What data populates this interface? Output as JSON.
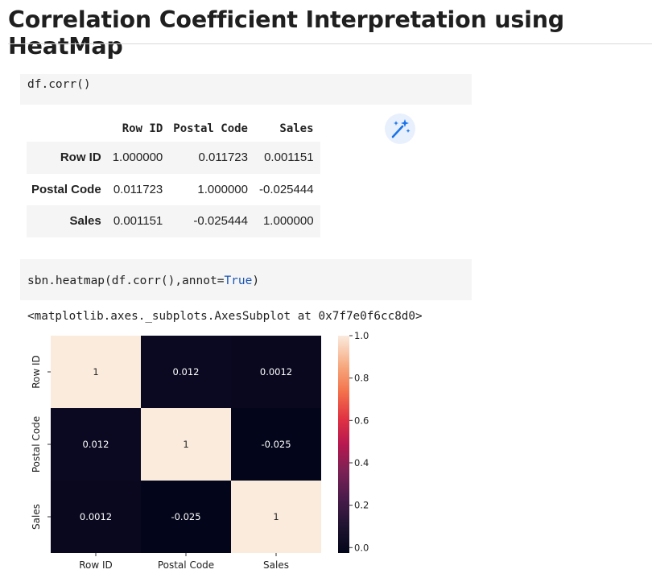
{
  "page": {
    "title": "Correlation Coefficient Interpretation using HeatMap"
  },
  "cells": {
    "corr_code": "df.corr()",
    "heatmap_code_prefix": "sbn.heatmap(df.corr(),annot=",
    "heatmap_code_true": "True",
    "heatmap_code_suffix": ")",
    "heatmap_output": "<matplotlib.axes._subplots.AxesSubplot at 0x7f7e0f6cc8d0>"
  },
  "icons": {
    "magic": "magic-wand-sparkle-icon"
  },
  "colors": {
    "magic_icon": "#1a73e8",
    "magic_bg": "#e8f0fe",
    "code_bg": "#f5f5f5",
    "true_keyword": "#1a56b3"
  },
  "table": {
    "columns": [
      "Row ID",
      "Postal Code",
      "Sales"
    ],
    "rows": [
      {
        "label": "Row ID",
        "values": [
          "1.000000",
          "0.011723",
          "0.001151"
        ]
      },
      {
        "label": "Postal Code",
        "values": [
          "0.011723",
          "1.000000",
          "-0.025444"
        ]
      },
      {
        "label": "Sales",
        "values": [
          "0.001151",
          "-0.025444",
          "1.000000"
        ]
      }
    ]
  },
  "chart_data": {
    "type": "heatmap",
    "x_categories": [
      "Row ID",
      "Postal Code",
      "Sales"
    ],
    "y_categories": [
      "Row ID",
      "Postal Code",
      "Sales"
    ],
    "values": [
      [
        1.0,
        0.011723,
        0.001151
      ],
      [
        0.011723,
        1.0,
        -0.025444
      ],
      [
        0.001151,
        -0.025444,
        1.0
      ]
    ],
    "annotations": [
      [
        "1",
        "0.012",
        "0.0012"
      ],
      [
        "0.012",
        "1",
        "-0.025"
      ],
      [
        "0.0012",
        "-0.025",
        "1"
      ]
    ],
    "colorbar": {
      "min": -0.025444,
      "max": 1.0,
      "ticks": [
        0.0,
        0.2,
        0.4,
        0.6,
        0.8,
        1.0
      ],
      "tick_labels": [
        "0.0",
        "0.2",
        "0.4",
        "0.6",
        "0.8",
        "1.0"
      ]
    },
    "colormap": "rocket"
  }
}
